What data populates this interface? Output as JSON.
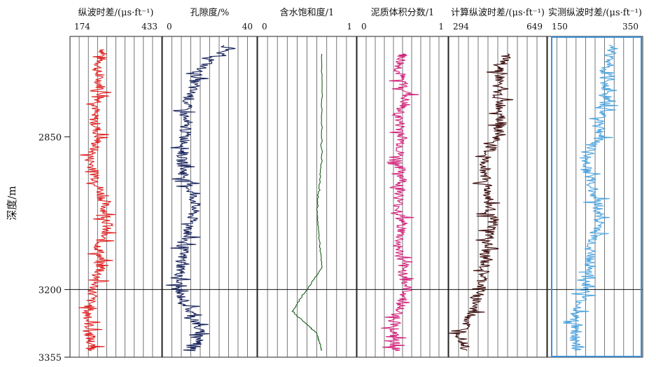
{
  "chart_data": {
    "type": "line",
    "y_axis": {
      "label": "深度/m",
      "ticks": [
        2850,
        3200,
        3355
      ],
      "depth_range": [
        2620,
        3355
      ]
    },
    "tracks": [
      {
        "title": "纵波时差/(μs·ft⁻¹)",
        "scale_min": "174",
        "scale_max": "433",
        "range": [
          174,
          433
        ],
        "color": "#e02020",
        "series": [
          {
            "depth": 2650,
            "value": 270
          },
          {
            "depth": 2700,
            "value": 250
          },
          {
            "depth": 2750,
            "value": 265
          },
          {
            "depth": 2800,
            "value": 240
          },
          {
            "depth": 2850,
            "value": 255
          },
          {
            "depth": 2900,
            "value": 230
          },
          {
            "depth": 2950,
            "value": 250
          },
          {
            "depth": 3000,
            "value": 270
          },
          {
            "depth": 3050,
            "value": 280
          },
          {
            "depth": 3100,
            "value": 255
          },
          {
            "depth": 3150,
            "value": 260
          },
          {
            "depth": 3200,
            "value": 240
          },
          {
            "depth": 3250,
            "value": 225
          },
          {
            "depth": 3300,
            "value": 230
          },
          {
            "depth": 3340,
            "value": 235
          }
        ]
      },
      {
        "title": "孔隙度/%",
        "scale_min": "0",
        "scale_max": "40",
        "range": [
          0,
          40
        ],
        "color": "#14205a",
        "series": [
          {
            "depth": 2640,
            "value": 28
          },
          {
            "depth": 2700,
            "value": 15
          },
          {
            "depth": 2750,
            "value": 12
          },
          {
            "depth": 2800,
            "value": 9
          },
          {
            "depth": 2850,
            "value": 10
          },
          {
            "depth": 2900,
            "value": 8
          },
          {
            "depth": 2950,
            "value": 10
          },
          {
            "depth": 3000,
            "value": 14
          },
          {
            "depth": 3050,
            "value": 12
          },
          {
            "depth": 3100,
            "value": 9
          },
          {
            "depth": 3150,
            "value": 8
          },
          {
            "depth": 3200,
            "value": 6
          },
          {
            "depth": 3250,
            "value": 12
          },
          {
            "depth": 3300,
            "value": 16
          },
          {
            "depth": 3340,
            "value": 14
          }
        ]
      },
      {
        "title": "含水饱和度/1",
        "scale_min": "0",
        "scale_max": "1",
        "range": [
          0,
          1
        ],
        "color": "#1a5e1a",
        "series": [
          {
            "depth": 2660,
            "value": 0.65
          },
          {
            "depth": 2900,
            "value": 0.65
          },
          {
            "depth": 3020,
            "value": 0.6
          },
          {
            "depth": 3150,
            "value": 0.65
          },
          {
            "depth": 3250,
            "value": 0.35
          },
          {
            "depth": 3300,
            "value": 0.6
          },
          {
            "depth": 3340,
            "value": 0.65
          }
        ]
      },
      {
        "title": "泥质体积分数/1",
        "scale_min": "0",
        "scale_max": "1",
        "range": [
          0,
          1
        ],
        "color": "#d2207a",
        "series": [
          {
            "depth": 2660,
            "value": 0.5
          },
          {
            "depth": 2700,
            "value": 0.45
          },
          {
            "depth": 2750,
            "value": 0.55
          },
          {
            "depth": 2800,
            "value": 0.45
          },
          {
            "depth": 2850,
            "value": 0.5
          },
          {
            "depth": 2900,
            "value": 0.45
          },
          {
            "depth": 2950,
            "value": 0.5
          },
          {
            "depth": 3000,
            "value": 0.45
          },
          {
            "depth": 3050,
            "value": 0.5
          },
          {
            "depth": 3100,
            "value": 0.45
          },
          {
            "depth": 3150,
            "value": 0.5
          },
          {
            "depth": 3200,
            "value": 0.55
          },
          {
            "depth": 3250,
            "value": 0.45
          },
          {
            "depth": 3300,
            "value": 0.4
          },
          {
            "depth": 3340,
            "value": 0.42
          }
        ]
      },
      {
        "title": "计算纵波时差/(μs·ft⁻¹)",
        "scale_min": "294",
        "scale_max": "649",
        "range": [
          294,
          649
        ],
        "color": "#3a0a0a",
        "series": [
          {
            "depth": 2660,
            "value": 500
          },
          {
            "depth": 2700,
            "value": 480
          },
          {
            "depth": 2750,
            "value": 470
          },
          {
            "depth": 2800,
            "value": 490
          },
          {
            "depth": 2850,
            "value": 470
          },
          {
            "depth": 2900,
            "value": 420
          },
          {
            "depth": 2950,
            "value": 430
          },
          {
            "depth": 3000,
            "value": 440
          },
          {
            "depth": 3050,
            "value": 450
          },
          {
            "depth": 3100,
            "value": 430
          },
          {
            "depth": 3150,
            "value": 420
          },
          {
            "depth": 3200,
            "value": 410
          },
          {
            "depth": 3250,
            "value": 380
          },
          {
            "depth": 3300,
            "value": 340
          },
          {
            "depth": 3340,
            "value": 360
          }
        ]
      },
      {
        "title": "实测纵波时差/(μs·ft⁻¹)",
        "scale_min": "150",
        "scale_max": "350",
        "range": [
          150,
          350
        ],
        "color": "#4aa3df",
        "series": [
          {
            "depth": 2640,
            "value": 290
          },
          {
            "depth": 2700,
            "value": 270
          },
          {
            "depth": 2750,
            "value": 275
          },
          {
            "depth": 2800,
            "value": 265
          },
          {
            "depth": 2850,
            "value": 260
          },
          {
            "depth": 2900,
            "value": 230
          },
          {
            "depth": 2950,
            "value": 240
          },
          {
            "depth": 3000,
            "value": 255
          },
          {
            "depth": 3050,
            "value": 260
          },
          {
            "depth": 3100,
            "value": 240
          },
          {
            "depth": 3150,
            "value": 240
          },
          {
            "depth": 3200,
            "value": 230
          },
          {
            "depth": 3250,
            "value": 210
          },
          {
            "depth": 3300,
            "value": 205
          },
          {
            "depth": 3340,
            "value": 210
          }
        ]
      }
    ]
  }
}
